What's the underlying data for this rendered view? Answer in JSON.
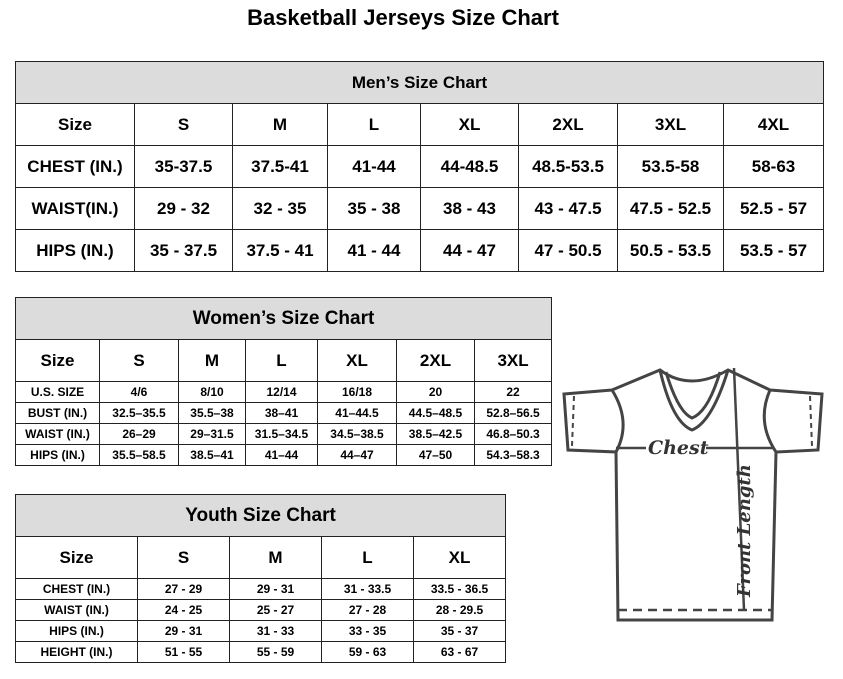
{
  "title": "Basketball Jerseys Size Chart",
  "men": {
    "title": "Men’s Size Chart",
    "headers": [
      "Size",
      "S",
      "M",
      "L",
      "XL",
      "2XL",
      "3XL",
      "4XL"
    ],
    "rows": [
      [
        "CHEST (IN.)",
        "35-37.5",
        "37.5-41",
        "41-44",
        "44-48.5",
        "48.5-53.5",
        "53.5-58",
        "58-63"
      ],
      [
        "WAIST(IN.)",
        "29 - 32",
        "32 - 35",
        "35 - 38",
        "38 - 43",
        "43 - 47.5",
        "47.5 - 52.5",
        "52.5 - 57"
      ],
      [
        "HIPS (IN.)",
        "35 - 37.5",
        "37.5 - 41",
        "41 - 44",
        "44 - 47",
        "47 - 50.5",
        "50.5 - 53.5",
        "53.5 - 57"
      ]
    ]
  },
  "women": {
    "title": "Women’s Size Chart",
    "headers": [
      "Size",
      "S",
      "M",
      "L",
      "XL",
      "2XL",
      "3XL"
    ],
    "rows": [
      [
        "U.S. SIZE",
        "4/6",
        "8/10",
        "12/14",
        "16/18",
        "20",
        "22"
      ],
      [
        "BUST (IN.)",
        "32.5–35.5",
        "35.5–38",
        "38–41",
        "41–44.5",
        "44.5–48.5",
        "52.8–56.5"
      ],
      [
        "WAIST (IN.)",
        "26–29",
        "29–31.5",
        "31.5–34.5",
        "34.5–38.5",
        "38.5–42.5",
        "46.8–50.3"
      ],
      [
        "HIPS (IN.)",
        "35.5–58.5",
        "38.5–41",
        "41–44",
        "44–47",
        "47–50",
        "54.3–58.3"
      ]
    ]
  },
  "youth": {
    "title": "Youth Size Chart",
    "headers": [
      "Size",
      "S",
      "M",
      "L",
      "XL"
    ],
    "rows": [
      [
        "CHEST (IN.)",
        "27 - 29",
        "29 - 31",
        "31 - 33.5",
        "33.5 - 36.5"
      ],
      [
        "WAIST (IN.)",
        "24 - 25",
        "25 - 27",
        "27 - 28",
        "28 - 29.5"
      ],
      [
        "HIPS (IN.)",
        "29 - 31",
        "31 - 33",
        "33 - 35",
        "35 - 37"
      ],
      [
        "HEIGHT (IN.)",
        "51 - 55",
        "55 - 59",
        "59 - 63",
        "63 - 67"
      ]
    ]
  },
  "diagram": {
    "chest_label": "Chest",
    "length_label": "Front Length"
  }
}
